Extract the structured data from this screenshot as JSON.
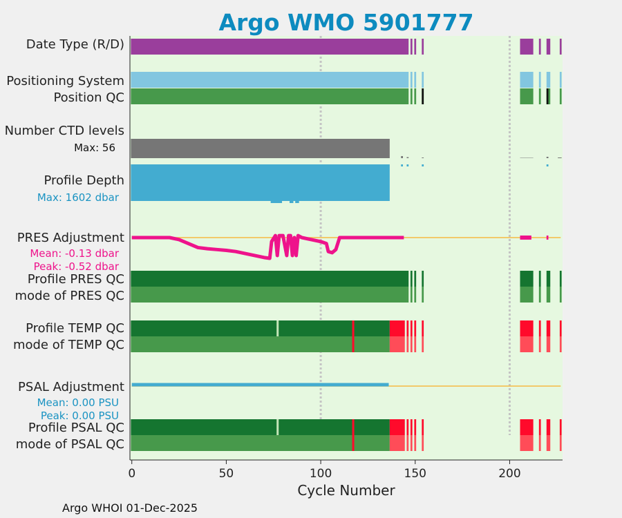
{
  "chart_data": {
    "type": "bar",
    "title": "Argo WMO 5901777",
    "xlabel": "Cycle Number",
    "footer": "Argo WHOI 01-Dec-2025",
    "xlim": [
      -1,
      228
    ],
    "xticks": [
      "0",
      "50",
      "100",
      "150",
      "200"
    ],
    "xtick_values": [
      0,
      50,
      100,
      150,
      200
    ],
    "vlines": [
      100,
      200
    ],
    "colors": {
      "background": "#e6f8e0",
      "figure": "#f0f0f0",
      "date_type": "#9a3e9c",
      "positioning": "#82c6e0",
      "qc_good": "#47994b",
      "qc_profile_good": "#157530",
      "qc_bad": "#ff0a2b",
      "qc_bad_light": "#ff4c58",
      "ctd_levels": "#767676",
      "profile_depth": "#43acd0",
      "pres_adjust": "#ee138b",
      "psal_adjust": "#43acd0",
      "zero_line": "#f5b942",
      "vline": "#c4c4c4"
    },
    "data_segments": [
      [
        0,
        145
      ],
      [
        146,
        146
      ],
      [
        148,
        148
      ],
      [
        150,
        150
      ],
      [
        154,
        154
      ],
      [
        206,
        212
      ],
      [
        216,
        216
      ],
      [
        220,
        221
      ],
      [
        227,
        227
      ]
    ],
    "rows": {
      "date_type": {
        "label": "Date Type (R/D)"
      },
      "positioning_system": {
        "label": "Positioning System"
      },
      "position_qc": {
        "label": "Position QC",
        "black_cycles": [
          154,
          220
        ]
      },
      "ctd_levels": {
        "label": "Number CTD levels",
        "max_text": "Max: 56",
        "max_value": 56,
        "segments": [
          {
            "x": [
              0,
              136
            ],
            "value": 56
          },
          {
            "x": [
              143,
              143
            ],
            "value": 6
          },
          {
            "x": [
              146,
              146
            ],
            "value": 3
          },
          {
            "x": [
              154,
              154
            ],
            "value": 2
          },
          {
            "x": [
              206,
              212
            ],
            "value": 1
          },
          {
            "x": [
              220,
              220
            ],
            "value": 4
          },
          {
            "x": [
              226,
              227
            ],
            "value": 2
          }
        ]
      },
      "profile_depth": {
        "label": "Profile Depth",
        "max_text": "Max: 1602 dbar",
        "max_value": 1602
      },
      "pres_adjustment": {
        "label": "PRES Adjustment",
        "mean_text": "Mean: -0.13 dbar",
        "peak_text": "Peak: -0.52 dbar",
        "x": [
          0,
          10,
          20,
          25,
          30,
          35,
          40,
          45,
          50,
          55,
          60,
          65,
          70,
          73,
          74,
          76,
          77,
          78,
          80,
          82,
          83,
          84,
          85,
          86,
          87,
          88,
          90,
          95,
          100,
          103,
          104,
          106,
          108,
          110,
          115,
          120,
          130,
          140,
          144
        ],
        "y": [
          0,
          0,
          0,
          -0.05,
          -0.15,
          -0.25,
          -0.28,
          -0.3,
          -0.32,
          -0.35,
          -0.4,
          -0.45,
          -0.5,
          -0.52,
          -0.1,
          0.05,
          -0.45,
          0.05,
          0.05,
          -0.45,
          0.05,
          0.05,
          -0.45,
          0,
          -0.45,
          0.05,
          0,
          -0.05,
          -0.1,
          -0.15,
          -0.35,
          -0.38,
          -0.3,
          0,
          0,
          0,
          0,
          0,
          0
        ],
        "extra_segments": [
          [
            206,
            211
          ],
          [
            220,
            220
          ]
        ],
        "ylim": [
          -0.7,
          0.4
        ]
      },
      "profile_pres_qc": {
        "label": "Profile PRES QC"
      },
      "mode_pres_qc": {
        "label": "mode of PRES QC"
      },
      "profile_temp_qc": {
        "label": "Profile TEMP QC",
        "gap_cycles": [
          77
        ],
        "red_cycles": [
          117
        ]
      },
      "mode_temp_qc": {
        "label": "mode of TEMP QC",
        "red_cycles": [
          117
        ]
      },
      "psal_adjustment": {
        "label": "PSAL Adjustment",
        "mean_text": "Mean: 0.00 PSU",
        "peak_text": "Peak: 0.00 PSU",
        "x": [
          0,
          136
        ],
        "y": [
          0,
          0
        ]
      },
      "profile_psal_qc": {
        "label": "Profile PSAL QC",
        "gap_cycles": [
          77
        ],
        "red_cycles": [
          117
        ]
      },
      "mode_psal_qc": {
        "label": "mode of PSAL QC",
        "red_cycles": [
          117
        ]
      }
    },
    "profile_split_cycle": 136
  }
}
